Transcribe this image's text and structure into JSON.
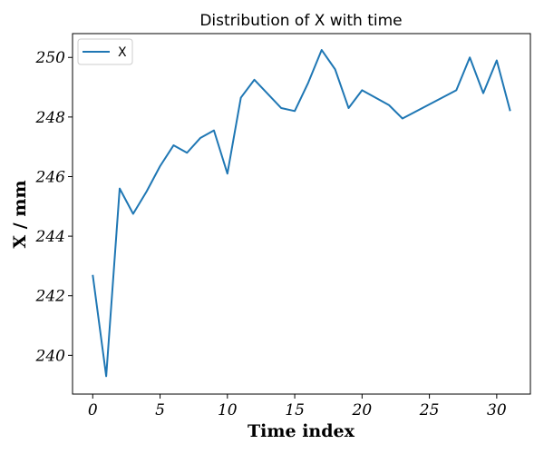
{
  "chart_data": {
    "type": "line",
    "title": "Distribution of X with time",
    "xlabel": "Time index",
    "ylabel": "X / mm",
    "xlim": [
      -1.5,
      32.5
    ],
    "ylim": [
      238.7,
      250.8
    ],
    "xticks": [
      0,
      5,
      10,
      15,
      20,
      25,
      30
    ],
    "yticks": [
      240,
      242,
      244,
      246,
      248,
      250
    ],
    "grid": false,
    "legend": "top-left",
    "series": [
      {
        "name": "X",
        "color": "#1f77b4",
        "x": [
          0,
          1,
          2,
          3,
          4,
          5,
          6,
          7,
          8,
          9,
          10,
          11,
          12,
          14,
          15,
          16,
          17,
          18,
          19,
          20,
          22,
          23,
          27,
          28,
          29,
          30,
          31
        ],
        "y": [
          242.7,
          239.3,
          245.6,
          244.75,
          245.5,
          246.35,
          247.05,
          246.8,
          247.3,
          247.55,
          246.1,
          248.65,
          249.25,
          248.3,
          248.2,
          249.15,
          250.25,
          249.6,
          248.3,
          248.9,
          248.4,
          247.95,
          248.9,
          250.0,
          248.8,
          249.9,
          248.2
        ]
      }
    ]
  }
}
